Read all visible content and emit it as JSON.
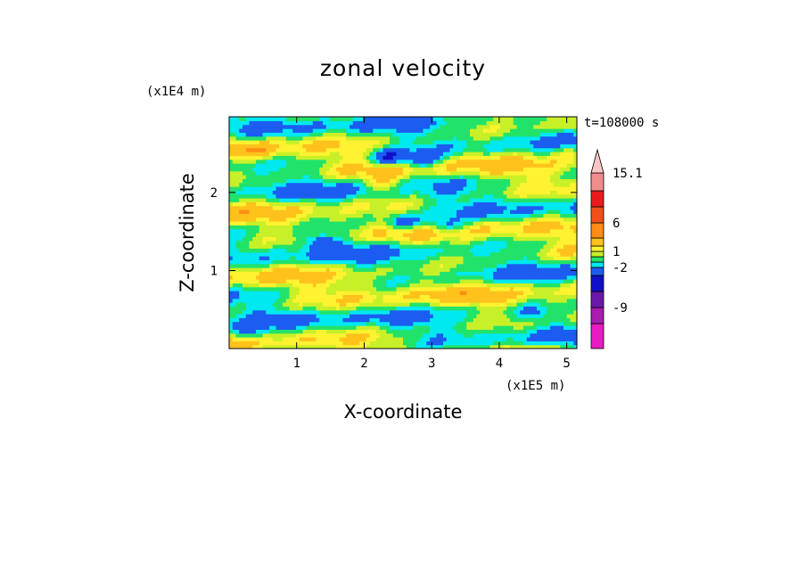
{
  "chart_data": {
    "type": "heatmap",
    "title": "zonal velocity",
    "xlabel": "X-coordinate",
    "ylabel": "Z-coordinate",
    "x_scale_label": "(x1E5 m)",
    "y_scale_label": "(x1E4 m)",
    "time_label": "t=108000 s",
    "xlim": [
      0,
      5.15
    ],
    "ylim": [
      0,
      2.97
    ],
    "x_ticks": [
      "1",
      "2",
      "3",
      "4",
      "5"
    ],
    "x_tick_values": [
      1,
      2,
      3,
      4,
      5
    ],
    "y_ticks": [
      "1",
      "2"
    ],
    "y_tick_values": [
      1,
      2
    ],
    "colorbar": {
      "levels": [
        -15.1,
        -12,
        -9,
        -6,
        -4,
        -2,
        -1,
        0,
        1,
        2,
        4,
        6,
        9,
        12,
        15.1
      ],
      "colors": [
        "#e81cc2",
        "#a81cb0",
        "#6a18a8",
        "#1010c8",
        "#1c5cf0",
        "#00e8f0",
        "#22e36a",
        "#c8f028",
        "#fff230",
        "#ffc21c",
        "#ff8c14",
        "#f05018",
        "#e81c1c",
        "#f08c8c",
        "#f8c4c4"
      ],
      "labels": [
        {
          "text": "15.1",
          "value": 15.1
        },
        {
          "text": "6",
          "value": 6
        },
        {
          "text": "1",
          "value": 1
        },
        {
          "text": "-2",
          "value": -2
        },
        {
          "text": "-9",
          "value": -9
        }
      ],
      "extend": "max"
    },
    "grid": false,
    "legend_position": "right"
  }
}
